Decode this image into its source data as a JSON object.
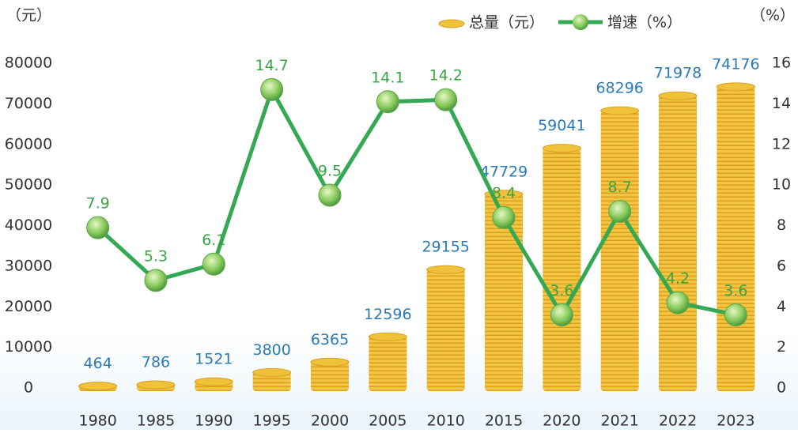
{
  "chart_data": {
    "type": "bar",
    "y_label": "（元）",
    "y2_label": "（%）",
    "categories": [
      "1980",
      "1985",
      "1990",
      "1995",
      "2000",
      "2005",
      "2010",
      "2015",
      "2020",
      "2021",
      "2022",
      "2023"
    ],
    "series": [
      {
        "name": "总量（元）",
        "type": "bar",
        "color": "#f0c23c",
        "values": [
          464,
          786,
          1521,
          3800,
          6365,
          12596,
          29155,
          47729,
          59041,
          68296,
          71978,
          74176
        ]
      },
      {
        "name": "增速（%）",
        "type": "line",
        "axis": "y2",
        "color": "#34a853",
        "values": [
          7.9,
          5.3,
          6.1,
          14.7,
          9.5,
          14.1,
          14.2,
          8.4,
          3.6,
          8.7,
          4.2,
          3.6
        ]
      }
    ],
    "ylim": [
      0,
      80000
    ],
    "yticks": [
      0,
      10000,
      20000,
      30000,
      40000,
      50000,
      60000,
      70000,
      80000
    ],
    "y2lim": [
      0,
      16
    ],
    "y2ticks": [
      0,
      2,
      4,
      6,
      8,
      10,
      12,
      14,
      16
    ]
  }
}
